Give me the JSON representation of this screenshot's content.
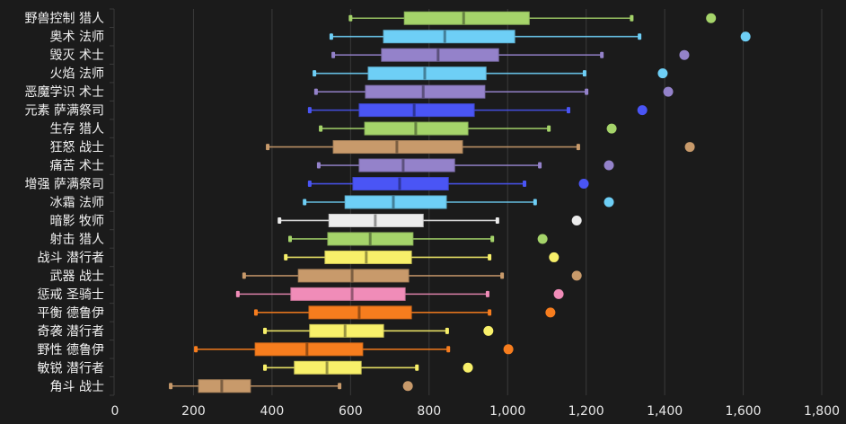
{
  "chart_data": {
    "type": "boxplot",
    "orientation": "horizontal",
    "title": "",
    "xlabel": "",
    "ylabel": "",
    "xlim": [
      0,
      1800
    ],
    "xticks": [
      0,
      200,
      400,
      600,
      800,
      1000,
      1200,
      1400,
      1600,
      1800
    ],
    "xtick_labels": [
      "0",
      "200",
      "400",
      "600",
      "800",
      "1,000",
      "1,200",
      "1,400",
      "1,600",
      "1,800"
    ],
    "grid": "vertical",
    "legend": "none",
    "background": "#1b1b1b",
    "categories": [
      "野兽控制 猎人",
      "奥术 法师",
      "毁灭 术士",
      "火焰 法师",
      "恶魔学识 术士",
      "元素 萨满祭司",
      "生存 猎人",
      "狂怒 战士",
      "痛苦 术士",
      "增强 萨满祭司",
      "冰霜 法师",
      "暗影 牧师",
      "射击 猎人",
      "战斗 潜行者",
      "武器 战士",
      "惩戒 圣骑士",
      "平衡 德鲁伊",
      "奇袭 潜行者",
      "野性 德鲁伊",
      "敏锐 潜行者",
      "角斗 战士"
    ],
    "series": [
      {
        "name": "野兽控制 猎人",
        "color": "#a5d46a",
        "min": 600,
        "q1": 737,
        "median": 888,
        "q3": 1055,
        "max": 1316,
        "outlier": 1518
      },
      {
        "name": "奥术 法师",
        "color": "#6ecff6",
        "min": 551,
        "q1": 684,
        "median": 840,
        "q3": 1018,
        "max": 1336,
        "outlier": 1606
      },
      {
        "name": "毁灭 术士",
        "color": "#9482ca",
        "min": 556,
        "q1": 679,
        "median": 823,
        "q3": 977,
        "max": 1240,
        "outlier": 1450
      },
      {
        "name": "火焰 法师",
        "color": "#6ecff6",
        "min": 508,
        "q1": 645,
        "median": 789,
        "q3": 945,
        "max": 1196,
        "outlier": 1395
      },
      {
        "name": "恶魔学识 术士",
        "color": "#9482ca",
        "min": 512,
        "q1": 638,
        "median": 785,
        "q3": 942,
        "max": 1201,
        "outlier": 1409
      },
      {
        "name": "元素 萨满祭司",
        "color": "#4a55f5",
        "min": 496,
        "q1": 622,
        "median": 762,
        "q3": 915,
        "max": 1155,
        "outlier": 1343
      },
      {
        "name": "生存 猎人",
        "color": "#a5d46a",
        "min": 524,
        "q1": 636,
        "median": 766,
        "q3": 899,
        "max": 1105,
        "outlier": 1265
      },
      {
        "name": "狂怒 战士",
        "color": "#c89a6b",
        "min": 389,
        "q1": 556,
        "median": 718,
        "q3": 885,
        "max": 1180,
        "outlier": 1464
      },
      {
        "name": "痛苦 术士",
        "color": "#9482ca",
        "min": 519,
        "q1": 622,
        "median": 734,
        "q3": 865,
        "max": 1082,
        "outlier": 1258
      },
      {
        "name": "增强 萨满祭司",
        "color": "#4a55f5",
        "min": 496,
        "q1": 606,
        "median": 725,
        "q3": 849,
        "max": 1043,
        "outlier": 1194
      },
      {
        "name": "冰霜 法师",
        "color": "#6ecff6",
        "min": 483,
        "q1": 586,
        "median": 709,
        "q3": 844,
        "max": 1070,
        "outlier": 1258
      },
      {
        "name": "暗影 牧师",
        "color": "#ececec",
        "min": 419,
        "q1": 545,
        "median": 663,
        "q3": 785,
        "max": 974,
        "outlier": 1176
      },
      {
        "name": "射击 猎人",
        "color": "#a5d46a",
        "min": 446,
        "q1": 542,
        "median": 650,
        "q3": 759,
        "max": 961,
        "outlier": 1089
      },
      {
        "name": "战斗 潜行者",
        "color": "#f8f06a",
        "min": 435,
        "q1": 535,
        "median": 640,
        "q3": 755,
        "max": 954,
        "outlier": 1118
      },
      {
        "name": "武器 战士",
        "color": "#c89a6b",
        "min": 329,
        "q1": 467,
        "median": 604,
        "q3": 748,
        "max": 986,
        "outlier": 1176
      },
      {
        "name": "惩戒 圣骑士",
        "color": "#f08cb8",
        "min": 313,
        "q1": 448,
        "median": 604,
        "q3": 739,
        "max": 949,
        "outlier": 1130
      },
      {
        "name": "平衡 德鲁伊",
        "color": "#f77d1e",
        "min": 359,
        "q1": 494,
        "median": 622,
        "q3": 755,
        "max": 954,
        "outlier": 1109
      },
      {
        "name": "奇袭 潜行者",
        "color": "#f8f06a",
        "min": 382,
        "q1": 496,
        "median": 586,
        "q3": 684,
        "max": 846,
        "outlier": 951
      },
      {
        "name": "野性 德鲁伊",
        "color": "#f77d1e",
        "min": 206,
        "q1": 357,
        "median": 489,
        "q3": 631,
        "max": 849,
        "outlier": 1002
      },
      {
        "name": "敏锐 潜行者",
        "color": "#f8f06a",
        "min": 382,
        "q1": 457,
        "median": 540,
        "q3": 627,
        "max": 769,
        "outlier": 899
      },
      {
        "name": "角斗 战士",
        "color": "#c89a6b",
        "min": 142,
        "q1": 213,
        "median": 272,
        "q3": 345,
        "max": 572,
        "outlier": 746
      }
    ]
  }
}
